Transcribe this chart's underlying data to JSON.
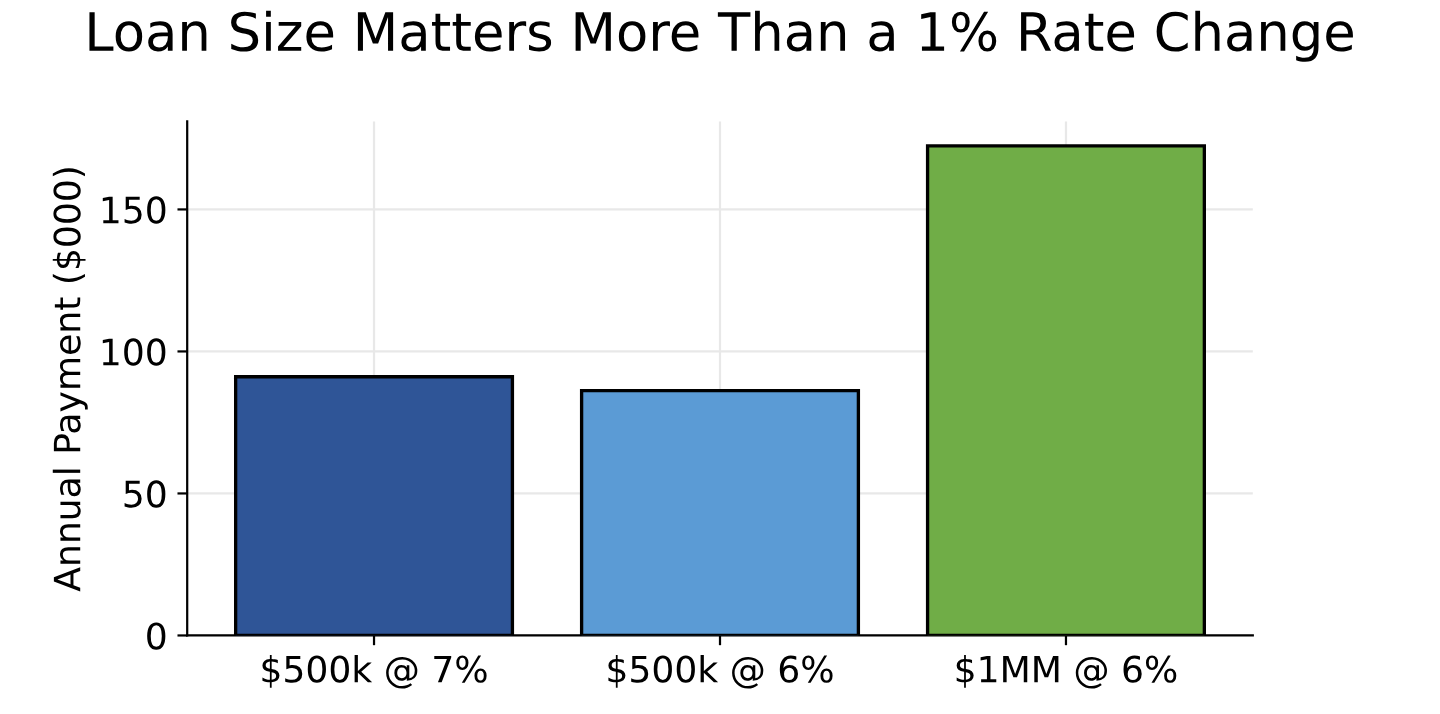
{
  "chart_data": {
    "type": "bar",
    "title": "Loan Size Matters More Than a 1% Rate Change",
    "ylabel": "Annual Payment ($000)",
    "categories": [
      "$500k @ 7%",
      "$500k @ 6%",
      "$1MM @ 6%"
    ],
    "values": [
      91.1,
      86.2,
      172.4
    ],
    "colors": [
      "#2f5597",
      "#5b9bd5",
      "#70ad47"
    ],
    "ylim": [
      0,
      181
    ],
    "yticks": [
      0,
      50,
      100,
      150
    ],
    "grid": true
  }
}
